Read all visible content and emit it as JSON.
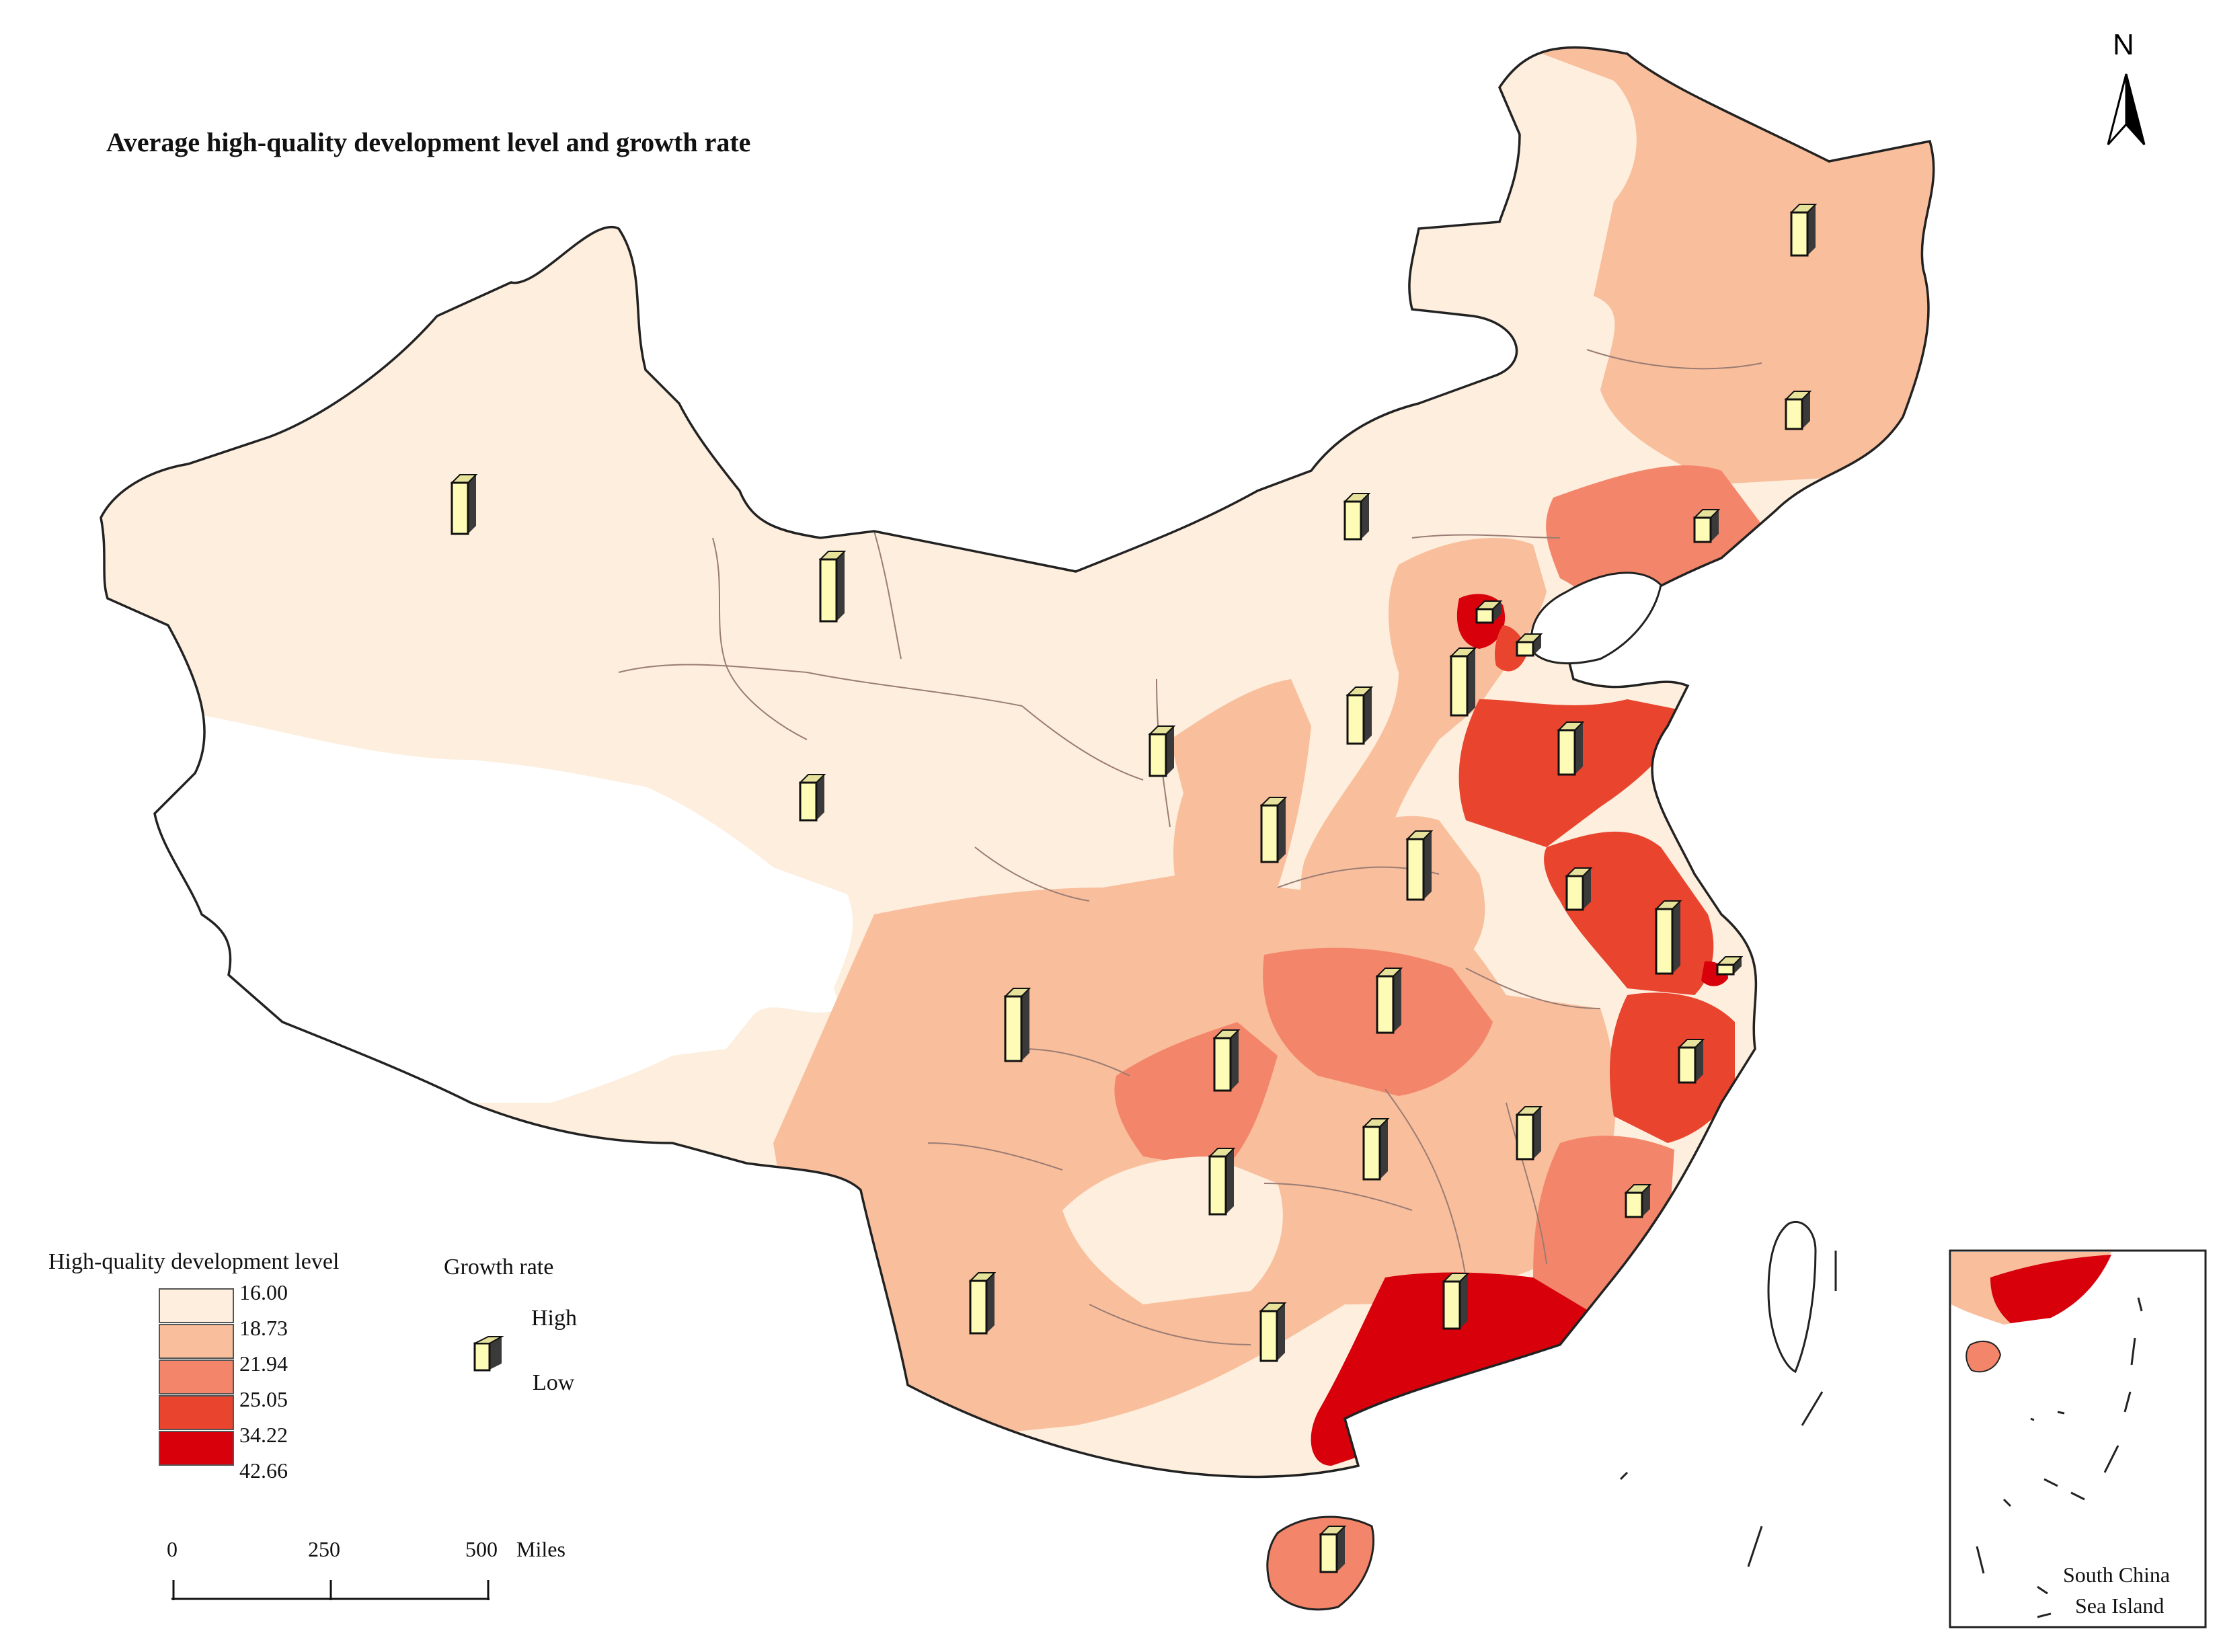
{
  "map": {
    "title": "Average high-quality development level and growth rate",
    "north_label": "N",
    "legend": {
      "title": "High-quality development level",
      "breaks": [
        {
          "label": "16.00",
          "color": "#fdeedd"
        },
        {
          "label": "18.73",
          "color": "#f9be9c"
        },
        {
          "label": "21.94",
          "color": "#f3866a"
        },
        {
          "label": "25.05",
          "color": "#e8442e"
        },
        {
          "label": "34.22",
          "color": "#d7000b"
        },
        {
          "label": "42.66",
          "color": ""
        }
      ]
    },
    "growth_legend": {
      "title": "Growth rate",
      "high_label": "High",
      "low_label": "Low",
      "bar_color": "#fefbb6"
    },
    "scale_bar": {
      "ticks": [
        "0",
        "250",
        "500"
      ],
      "unit": "Miles"
    },
    "inset": {
      "label_line1": "South China",
      "label_line2": "Sea Island"
    },
    "colors": {
      "outline": "#222222",
      "internal_border": "#9a7c74",
      "no_data": "#ffffff"
    }
  }
}
